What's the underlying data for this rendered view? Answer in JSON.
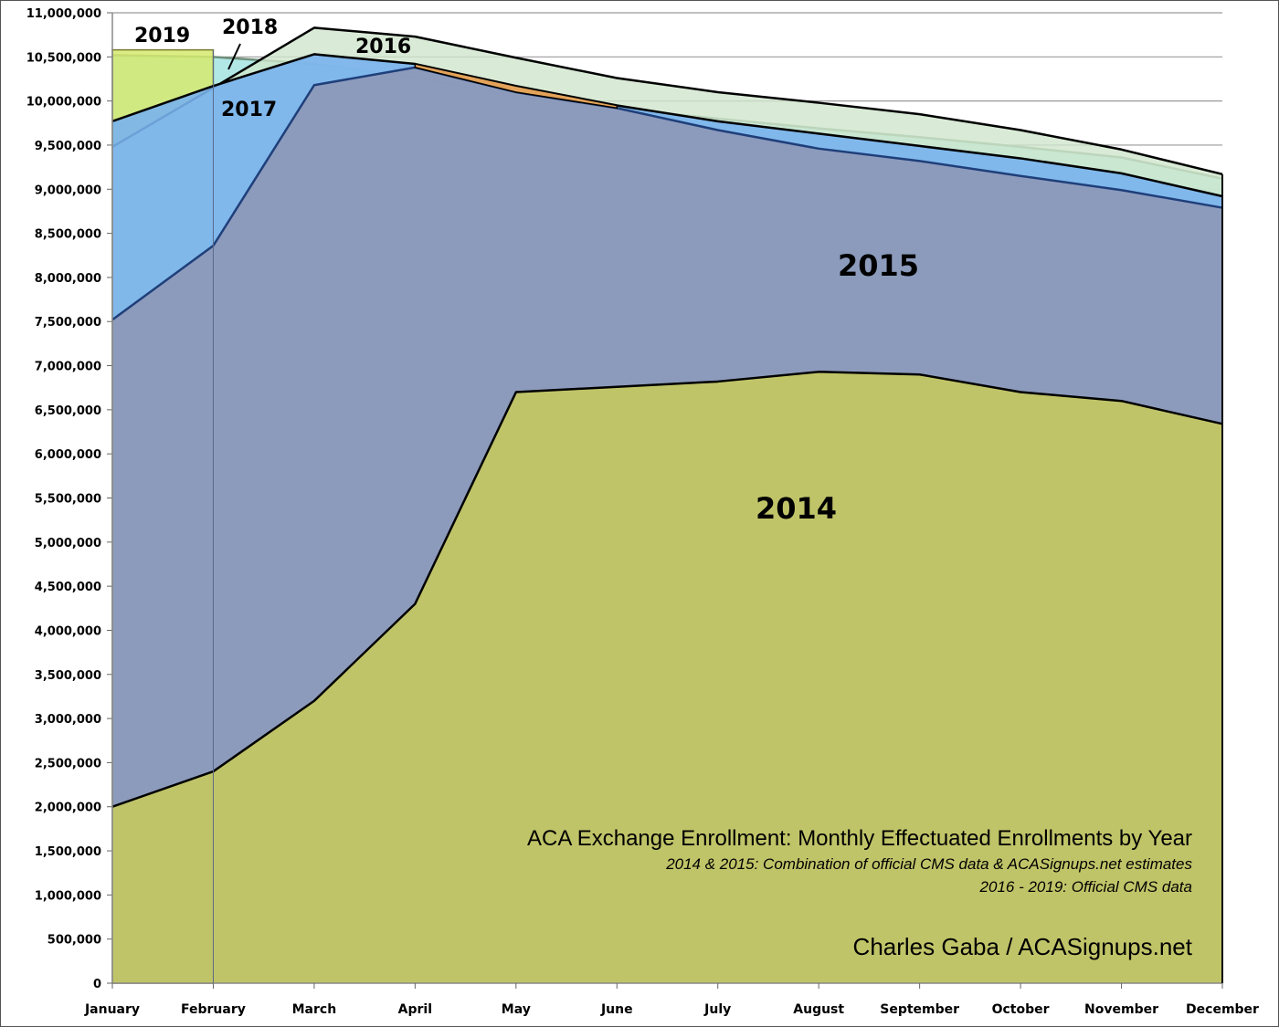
{
  "chart_data": {
    "type": "area",
    "title": "ACA Exchange Enrollment: Monthly Effectuated Enrollments by Year",
    "subtitles": [
      "2014 & 2015: Combination of official CMS data & ACASignups.net estimates",
      "2016 - 2019: Official CMS data"
    ],
    "credit": "Charles Gaba / ACASignups.net",
    "xlabel": "",
    "ylabel": "",
    "categories": [
      "January",
      "February",
      "March",
      "April",
      "May",
      "June",
      "July",
      "August",
      "September",
      "October",
      "November",
      "December"
    ],
    "ylim": [
      0,
      11000000
    ],
    "ytick_step": 500000,
    "grid": true,
    "legend": "none (series labelled inside areas)",
    "series": [
      {
        "name": "2018",
        "color": "#a9e6e3",
        "line": "#6f8f7a",
        "values": [
          10520000,
          10500000,
          10420000,
          10270000,
          10050000,
          9920000,
          9800000,
          9690000,
          9590000,
          9480000,
          9360000,
          9120000
        ]
      },
      {
        "name": "2019",
        "color": "#d6ea6e",
        "line": "#7a7a30",
        "values": [
          10580000,
          10580000,
          null,
          null,
          null,
          null,
          null,
          null,
          null,
          null,
          null,
          null
        ]
      },
      {
        "name": "2016",
        "color": "#cfe6cc",
        "line": "#000000",
        "values": [
          9480000,
          10150000,
          10830000,
          10730000,
          10490000,
          10260000,
          10100000,
          9980000,
          9850000,
          9670000,
          9450000,
          9170000
        ]
      },
      {
        "name": "2017",
        "color": "#78b2ee",
        "line": "#000000",
        "values": [
          9770000,
          10170000,
          10530000,
          10420000,
          10170000,
          9950000,
          9770000,
          9630000,
          9490000,
          9350000,
          9180000,
          8920000
        ]
      },
      {
        "name": "2015",
        "color": "#8c99b9",
        "line": "#1f3f7a",
        "values": [
          7520000,
          8360000,
          10180000,
          10380000,
          10100000,
          9920000,
          9670000,
          9460000,
          9320000,
          9150000,
          8990000,
          8790000
        ]
      },
      {
        "name": "2014",
        "color": "#c5c95e",
        "line": "#000000",
        "values": [
          2000000,
          2400000,
          3200000,
          4300000,
          6700000,
          6760000,
          6820000,
          6930000,
          6900000,
          6700000,
          6600000,
          6340000
        ]
      }
    ],
    "accent_band": {
      "color": "#e3a35a",
      "note": ""
    }
  }
}
